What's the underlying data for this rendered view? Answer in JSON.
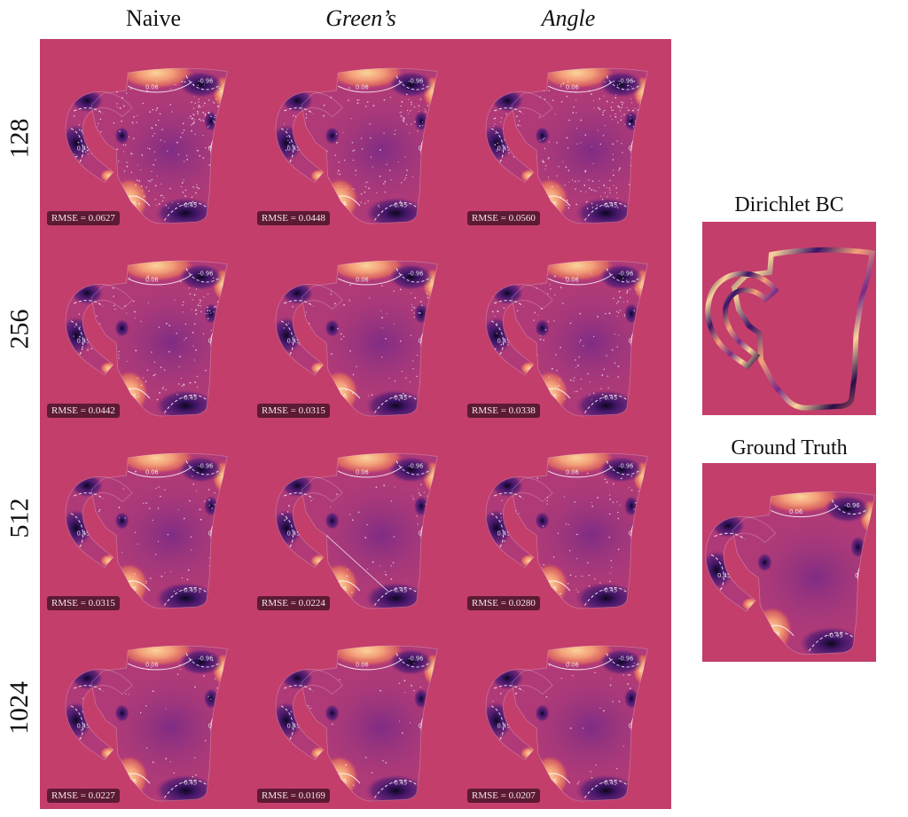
{
  "columns": [
    "Naive",
    "Green’s",
    "Angle"
  ],
  "rows": [
    {
      "label": "128",
      "rmse": [
        "RMSE = 0.0627",
        "RMSE = 0.0448",
        "RMSE = 0.0560"
      ]
    },
    {
      "label": "256",
      "rmse": [
        "RMSE = 0.0442",
        "RMSE = 0.0315",
        "RMSE = 0.0338"
      ]
    },
    {
      "label": "512",
      "rmse": [
        "RMSE = 0.0315",
        "RMSE = 0.0224",
        "RMSE = 0.0280"
      ]
    },
    {
      "label": "1024",
      "rmse": [
        "RMSE = 0.0227",
        "RMSE = 0.0169",
        "RMSE = 0.0207"
      ]
    }
  ],
  "side": {
    "bc_title": "Dirichlet BC",
    "gt_title": "Ground Truth"
  },
  "contour_labels": [
    "0.96",
    "0.45",
    "0.06",
    "-0.45",
    "-0.96"
  ],
  "colors": {
    "background": "#c33e6b",
    "warm": "#fbd49a",
    "cool": "#3b1466"
  }
}
